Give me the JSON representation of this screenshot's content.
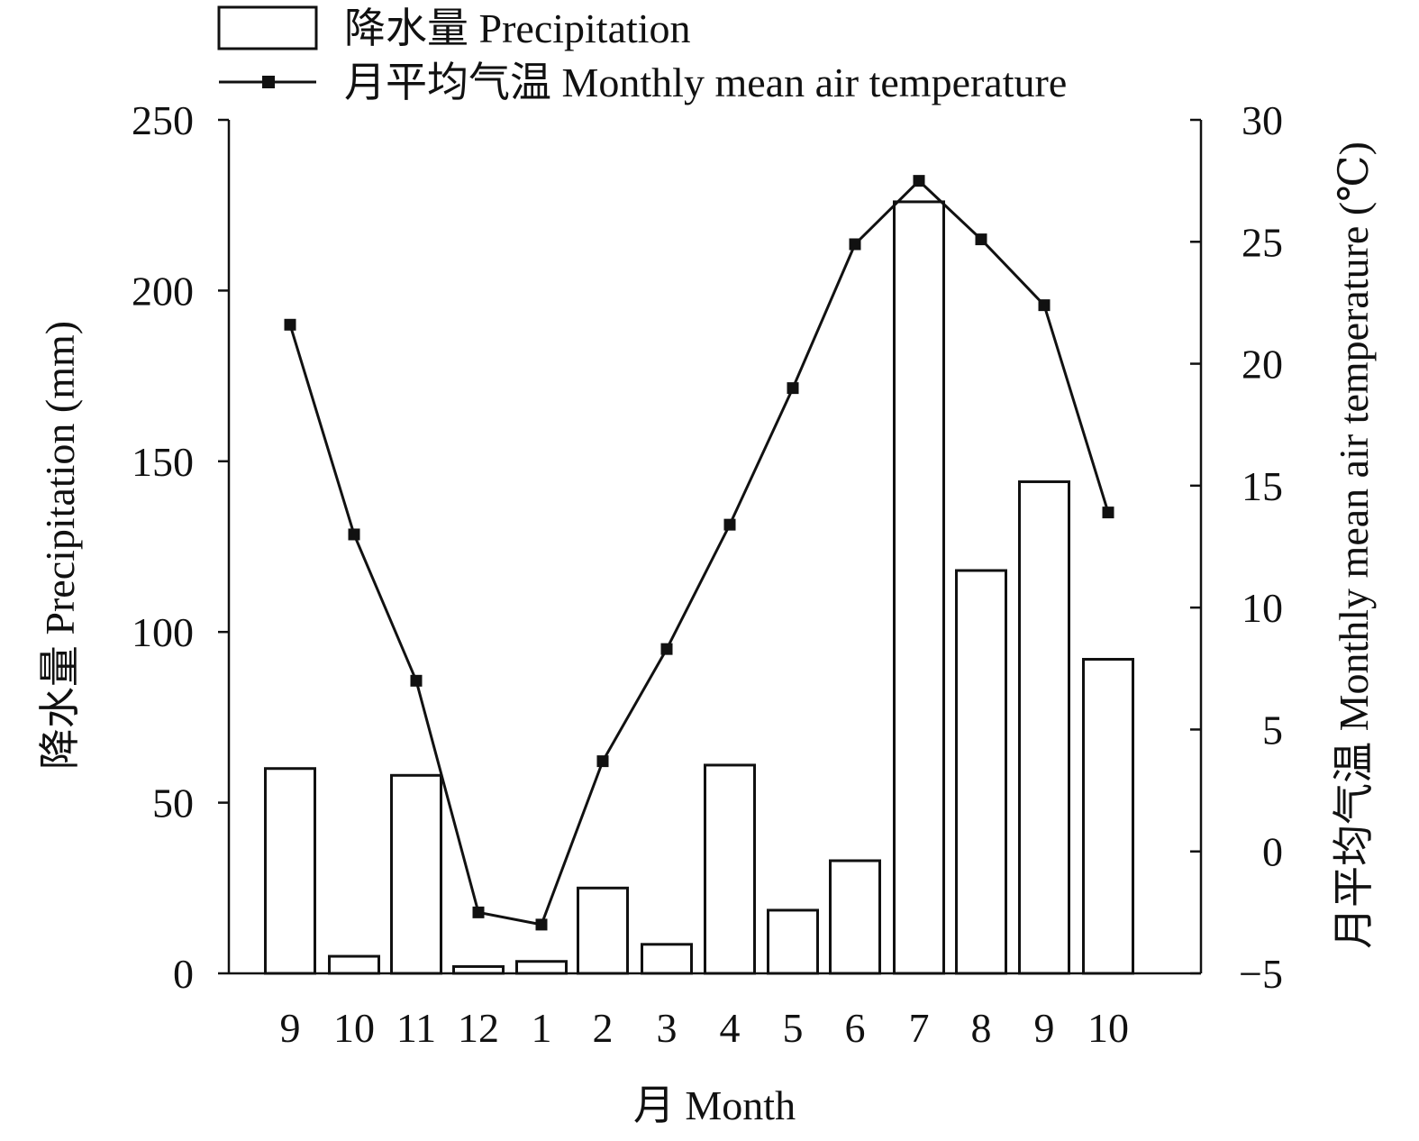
{
  "chart_data": {
    "type": "bar",
    "categories": [
      "9",
      "10",
      "11",
      "12",
      "1",
      "2",
      "3",
      "4",
      "5",
      "6",
      "7",
      "8",
      "9",
      "10"
    ],
    "series": [
      {
        "name": "降水量 Precipitation",
        "kind": "bar",
        "axis": "left",
        "values": [
          60,
          5,
          58,
          2,
          3.5,
          25,
          8.5,
          61,
          18.5,
          33,
          226,
          118,
          144,
          92
        ]
      },
      {
        "name": "月平均气温 Monthly mean air temperature",
        "kind": "line",
        "axis": "right",
        "values": [
          21.6,
          13.0,
          7.0,
          -2.5,
          -3.0,
          3.7,
          8.3,
          13.4,
          19.0,
          24.9,
          27.5,
          25.1,
          22.4,
          13.9
        ]
      }
    ],
    "xlabel": "月 Month",
    "ylabel": "降水量 Precipitation (mm)",
    "ylabel_right": "月平均气温 Monthly mean air temperature (℃)",
    "ylim": [
      0,
      250
    ],
    "ylim_right": [
      -5,
      30
    ],
    "yticks": [
      0,
      50,
      100,
      150,
      200,
      250
    ],
    "yticks_right": [
      -5,
      0,
      5,
      10,
      15,
      20,
      25,
      30
    ],
    "grid": false,
    "legend_position": "top"
  }
}
